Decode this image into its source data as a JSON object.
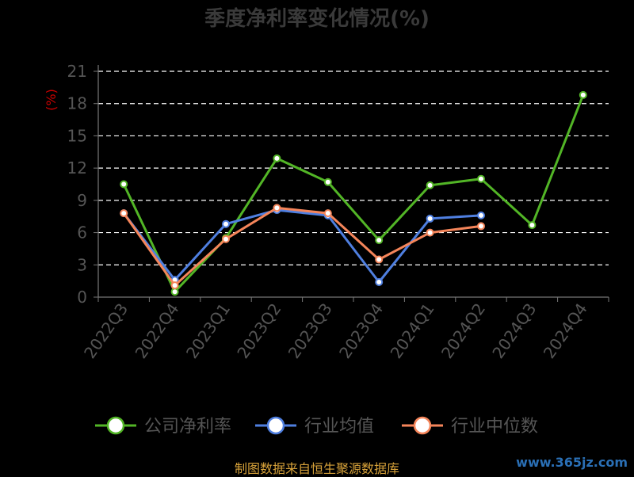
{
  "chart_data": {
    "type": "line",
    "title": "季度净利率变化情况(%)",
    "ylabel": "(%)",
    "categories": [
      "2022Q3",
      "2022Q4",
      "2023Q1",
      "2023Q2",
      "2023Q3",
      "2023Q4",
      "2024Q1",
      "2024Q2",
      "2024Q3",
      "2024Q4"
    ],
    "ylim": [
      0,
      21
    ],
    "yticks": [
      0,
      3,
      6,
      9,
      12,
      15,
      18,
      21
    ],
    "grid": true,
    "legend_position": "bottom",
    "series": [
      {
        "name": "公司净利率",
        "color": "#52b526",
        "values": [
          10.5,
          0.5,
          5.5,
          12.9,
          10.7,
          5.3,
          10.4,
          11.0,
          6.7,
          18.8
        ]
      },
      {
        "name": "行业均值",
        "color": "#4f7fe0",
        "values": [
          7.8,
          1.6,
          6.8,
          8.1,
          7.6,
          1.4,
          7.3,
          7.6,
          null,
          null
        ]
      },
      {
        "name": "行业中位数",
        "color": "#f5855a",
        "values": [
          7.8,
          1.1,
          5.4,
          8.3,
          7.8,
          3.5,
          6.0,
          6.6,
          null,
          null
        ]
      }
    ]
  },
  "footer": {
    "source": "制图数据来自恒生聚源数据库",
    "watermark": "www.365jz.com"
  }
}
